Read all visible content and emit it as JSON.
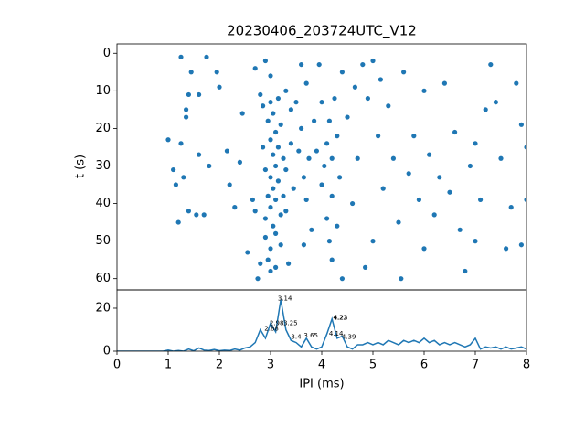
{
  "chart_data": [
    {
      "type": "scatter",
      "title": "20230406_203724UTC_V12",
      "y_label": "t (s)",
      "color": "#1f77b4",
      "xlim": [
        0,
        8
      ],
      "ylim": [
        63,
        -2.5
      ],
      "yticks": [
        0,
        10,
        20,
        30,
        40,
        50,
        60
      ],
      "x": [
        1.0,
        1.1,
        1.15,
        1.2,
        1.25,
        1.25,
        1.3,
        1.35,
        1.35,
        1.4,
        1.4,
        1.45,
        1.55,
        1.6,
        1.6,
        1.7,
        1.75,
        1.8,
        1.95,
        2.0,
        2.15,
        2.2,
        2.3,
        2.4,
        2.45,
        2.55,
        2.65,
        2.7,
        2.7,
        2.75,
        2.8,
        2.8,
        2.85,
        2.85,
        2.9,
        2.9,
        2.9,
        2.9,
        2.95,
        2.95,
        2.95,
        3.0,
        3.0,
        3.0,
        3.0,
        3.0,
        3.0,
        3.0,
        3.05,
        3.05,
        3.05,
        3.05,
        3.1,
        3.1,
        3.1,
        3.1,
        3.1,
        3.15,
        3.15,
        3.15,
        3.2,
        3.2,
        3.2,
        3.25,
        3.25,
        3.3,
        3.3,
        3.3,
        3.35,
        3.4,
        3.4,
        3.45,
        3.5,
        3.55,
        3.6,
        3.6,
        3.65,
        3.65,
        3.7,
        3.7,
        3.75,
        3.8,
        3.85,
        3.9,
        3.95,
        4.0,
        4.0,
        4.05,
        4.1,
        4.1,
        4.15,
        4.15,
        4.2,
        4.2,
        4.2,
        4.25,
        4.3,
        4.3,
        4.35,
        4.4,
        4.4,
        4.5,
        4.6,
        4.65,
        4.7,
        4.8,
        4.85,
        4.9,
        5.0,
        5.0,
        5.1,
        5.15,
        5.2,
        5.3,
        5.4,
        5.5,
        5.55,
        5.6,
        5.7,
        5.8,
        5.9,
        6.0,
        6.0,
        6.1,
        6.2,
        6.3,
        6.4,
        6.5,
        6.6,
        6.7,
        6.8,
        6.9,
        7.0,
        7.0,
        7.1,
        7.2,
        7.3,
        7.4,
        7.5,
        7.6,
        7.7,
        7.8,
        7.9,
        7.9,
        8.0,
        8.0
      ],
      "values": [
        23,
        31,
        35,
        45,
        1,
        24,
        33,
        15,
        17,
        11,
        42,
        5,
        43,
        11,
        27,
        43,
        1,
        30,
        5,
        9,
        26,
        35,
        41,
        29,
        16,
        53,
        39,
        4,
        42,
        60,
        11,
        56,
        14,
        25,
        2,
        31,
        44,
        49,
        18,
        38,
        55,
        6,
        13,
        23,
        33,
        41,
        52,
        58,
        16,
        27,
        36,
        46,
        21,
        30,
        39,
        48,
        57,
        12,
        25,
        34,
        43,
        51,
        19,
        28,
        38,
        10,
        31,
        42,
        56,
        15,
        24,
        36,
        13,
        26,
        3,
        20,
        33,
        51,
        8,
        39,
        28,
        47,
        18,
        26,
        3,
        13,
        35,
        30,
        24,
        44,
        50,
        18,
        28,
        38,
        55,
        12,
        22,
        46,
        33,
        60,
        5,
        17,
        40,
        9,
        28,
        3,
        57,
        12,
        2,
        50,
        22,
        7,
        36,
        14,
        28,
        45,
        60,
        5,
        32,
        22,
        39,
        10,
        52,
        27,
        43,
        33,
        8,
        37,
        21,
        47,
        58,
        30,
        24,
        50,
        39,
        15,
        3,
        13,
        28,
        52,
        41,
        8,
        19,
        51,
        25,
        39
      ]
    },
    {
      "type": "line",
      "x_label": "IPI (ms)",
      "color": "#1f77b4",
      "xlim": [
        0,
        8
      ],
      "ylim": [
        0,
        28.5
      ],
      "xticks": [
        0,
        1,
        2,
        3,
        4,
        5,
        6,
        7,
        8
      ],
      "yticks": [
        0,
        20
      ],
      "x": [
        0,
        0.1,
        0.2,
        0.3,
        0.4,
        0.5,
        0.6,
        0.7,
        0.8,
        0.9,
        1.0,
        1.1,
        1.2,
        1.3,
        1.4,
        1.5,
        1.6,
        1.7,
        1.8,
        1.9,
        2.0,
        2.1,
        2.2,
        2.3,
        2.4,
        2.5,
        2.6,
        2.7,
        2.8,
        2.9,
        3.0,
        3.1,
        3.2,
        3.3,
        3.4,
        3.5,
        3.6,
        3.7,
        3.8,
        3.9,
        4.0,
        4.1,
        4.2,
        4.3,
        4.4,
        4.5,
        4.6,
        4.7,
        4.8,
        4.9,
        5.0,
        5.1,
        5.2,
        5.3,
        5.4,
        5.5,
        5.6,
        5.7,
        5.8,
        5.9,
        6.0,
        6.1,
        6.2,
        6.3,
        6.4,
        6.5,
        6.6,
        6.7,
        6.8,
        6.9,
        7.0,
        7.1,
        7.2,
        7.3,
        7.4,
        7.5,
        7.6,
        7.7,
        7.8,
        7.9,
        8.0
      ],
      "values": [
        0,
        0,
        0,
        0,
        0,
        0,
        0,
        0,
        0,
        0,
        0.5,
        0,
        0.3,
        0,
        1,
        0.2,
        1.5,
        0.5,
        0.3,
        0.8,
        0.2,
        0.5,
        0.3,
        1,
        0.5,
        1.5,
        2,
        4,
        10,
        6,
        13,
        9,
        24,
        10,
        5,
        4,
        2,
        6,
        2,
        1,
        2,
        8,
        15,
        6,
        7,
        2,
        1,
        3,
        3,
        4,
        3,
        4,
        3,
        5,
        4,
        3,
        5,
        4,
        5,
        4,
        6,
        4,
        5,
        3,
        4,
        3,
        4,
        3,
        2,
        3,
        6,
        1,
        2,
        1.5,
        2,
        1,
        2,
        1,
        1.5,
        2,
        1
      ],
      "annotations": [
        {
          "x": 3.14,
          "y": 24.5,
          "text": "3.14"
        },
        {
          "x": 2.88,
          "y": 10.5,
          "text": "2.88"
        },
        {
          "x": 2.98,
          "y": 13,
          "text": "2.98"
        },
        {
          "x": 3.25,
          "y": 13,
          "text": "3.25"
        },
        {
          "x": 3.4,
          "y": 6.5,
          "text": "3.4"
        },
        {
          "x": 3.65,
          "y": 7.2,
          "text": "3.65"
        },
        {
          "x": 4.14,
          "y": 8,
          "text": "4.14"
        },
        {
          "x": 4.22,
          "y": 15.5,
          "text": "4.22"
        },
        {
          "x": 4.23,
          "y": 15.5,
          "text": "4.23"
        },
        {
          "x": 4.39,
          "y": 6.5,
          "text": "4.39"
        }
      ]
    }
  ]
}
